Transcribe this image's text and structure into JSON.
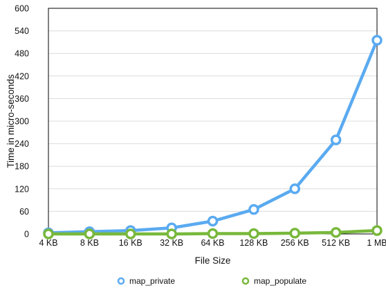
{
  "chart_data": {
    "type": "line",
    "title": "",
    "xlabel": "File Size",
    "ylabel": "Time in micro-seconds",
    "categories": [
      "4 KB",
      "8 KB",
      "16 KB",
      "32 KB",
      "64 KB",
      "128 KB",
      "256 KB",
      "512 KB",
      "1 MB"
    ],
    "ylim": [
      0,
      600
    ],
    "yticks": [
      0,
      60,
      120,
      180,
      240,
      300,
      360,
      420,
      480,
      540,
      600
    ],
    "grid": true,
    "legend_position": "bottom",
    "series": [
      {
        "name": "map_private",
        "color": "#5aaaf0",
        "values": [
          3,
          6,
          9,
          16,
          34,
          65,
          120,
          250,
          515
        ]
      },
      {
        "name": "map_populate",
        "color": "#78b83c",
        "values": [
          0,
          0,
          0,
          0,
          1,
          1,
          2,
          4,
          9
        ]
      }
    ]
  }
}
